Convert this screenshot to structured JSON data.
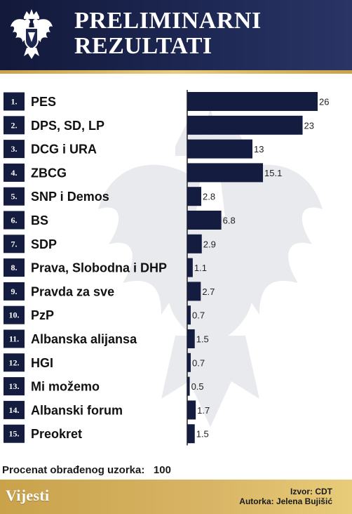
{
  "header": {
    "title_line1": "PRELIMINARNI",
    "title_line2": "REZULTATI"
  },
  "chart_data": {
    "type": "bar",
    "orientation": "horizontal",
    "categories": [
      "PES",
      "DPS, SD, LP",
      "DCG i URA",
      "ZBCG",
      "SNP i Demos",
      "BS",
      "SDP",
      "Prava, Slobodna i DHP",
      "Pravda za sve",
      "PzP",
      "Albanska alijansa",
      "HGI",
      "Mi možemo",
      "Albanski forum",
      "Preokret"
    ],
    "ranks": [
      "1.",
      "2.",
      "3.",
      "4.",
      "5.",
      "6.",
      "7.",
      "8.",
      "9.",
      "10.",
      "11.",
      "12.",
      "13.",
      "14.",
      "15."
    ],
    "values": [
      26,
      23,
      13,
      15.1,
      2.8,
      6.8,
      2.9,
      1.1,
      2.7,
      0.7,
      1.5,
      0.7,
      0.5,
      1.7,
      1.5
    ],
    "value_labels": [
      "26",
      "23",
      "13",
      "15.1",
      "2.8",
      "6.8",
      "2.9",
      "1.1",
      "2.7",
      "0.7",
      "1.5",
      "0.7",
      "0.5",
      "1.7",
      "1.5"
    ],
    "xlim": [
      0,
      26
    ],
    "grid": false,
    "colors": {
      "bar": "#141c40",
      "rank_box": "#141c40",
      "rank_text": "#ffffff",
      "label": "#111111"
    }
  },
  "sample": {
    "label": "Procenat obrađenog uzorka:",
    "value": "100"
  },
  "footer": {
    "logo": "Vijesti",
    "source": "Izvor: CDT",
    "author": "Autorka: Jelena Bujišić"
  },
  "icons": {
    "coat_of_arms": "montenegro-coat-of-arms-icon"
  },
  "colors": {
    "header_bg": "#1d2752",
    "gold": "#c9a24a",
    "text": "#1a1a1a"
  }
}
